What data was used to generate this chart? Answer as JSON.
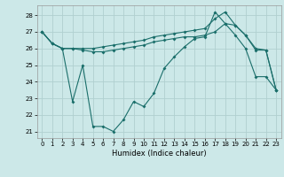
{
  "xlabel": "Humidex (Indice chaleur)",
  "bg_color": "#cce8e8",
  "grid_color": "#b0d0d0",
  "line_color": "#1a6e6a",
  "xlim": [
    -0.5,
    23.5
  ],
  "ylim": [
    20.6,
    28.6
  ],
  "yticks": [
    21,
    22,
    23,
    24,
    25,
    26,
    27,
    28
  ],
  "xticks": [
    0,
    1,
    2,
    3,
    4,
    5,
    6,
    7,
    8,
    9,
    10,
    11,
    12,
    13,
    14,
    15,
    16,
    17,
    18,
    19,
    20,
    21,
    22,
    23
  ],
  "line1_x": [
    0,
    1,
    2,
    3,
    4,
    5,
    6,
    7,
    8,
    9,
    10,
    11,
    12,
    13,
    14,
    15,
    16,
    17,
    18,
    19,
    20,
    21,
    22,
    23
  ],
  "line1_y": [
    27.0,
    26.3,
    26.0,
    26.0,
    25.9,
    25.8,
    25.8,
    25.9,
    26.0,
    26.1,
    26.2,
    26.4,
    26.5,
    26.6,
    26.7,
    26.7,
    26.8,
    27.0,
    27.5,
    27.4,
    26.8,
    25.9,
    25.9,
    23.5
  ],
  "line2_x": [
    0,
    1,
    2,
    3,
    4,
    5,
    6,
    7,
    8,
    9,
    10,
    11,
    12,
    13,
    14,
    15,
    16,
    17,
    18,
    19,
    20,
    21,
    22,
    23
  ],
  "line2_y": [
    27.0,
    26.3,
    26.0,
    26.0,
    26.0,
    26.0,
    26.1,
    26.2,
    26.3,
    26.4,
    26.5,
    26.7,
    26.8,
    26.9,
    27.0,
    27.1,
    27.2,
    27.8,
    28.2,
    27.4,
    26.8,
    26.0,
    25.9,
    23.5
  ],
  "line3_x": [
    0,
    1,
    2,
    3,
    4,
    5,
    6,
    7,
    8,
    9,
    10,
    11,
    12,
    13,
    14,
    15,
    16,
    17,
    18,
    19,
    20,
    21,
    22,
    23
  ],
  "line3_y": [
    27.0,
    26.3,
    26.0,
    22.8,
    25.0,
    21.3,
    21.3,
    21.0,
    21.7,
    22.8,
    22.5,
    23.3,
    24.8,
    25.5,
    26.1,
    26.6,
    26.7,
    28.2,
    27.5,
    26.8,
    26.0,
    24.3,
    24.3,
    23.5
  ]
}
